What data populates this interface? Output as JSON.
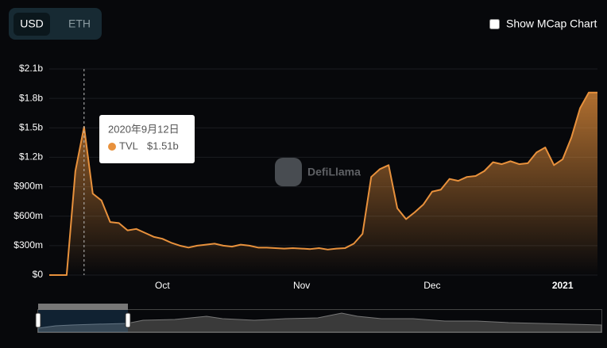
{
  "chart_data": {
    "type": "area",
    "currency_options": [
      "USD",
      "ETH"
    ],
    "selected_currency": "USD",
    "checkbox_label": "Show MCap Chart",
    "watermark": "DefiLlama",
    "categories": [
      null,
      null,
      null,
      null,
      null,
      null,
      null,
      null,
      null,
      null,
      null,
      null,
      null,
      "Oct",
      null,
      null,
      null,
      null,
      null,
      null,
      null,
      null,
      null,
      null,
      null,
      null,
      null,
      null,
      null,
      "Nov",
      null,
      null,
      null,
      null,
      null,
      null,
      null,
      null,
      null,
      null,
      null,
      null,
      null,
      null,
      "Dec",
      null,
      null,
      null,
      null,
      null,
      null,
      null,
      null,
      null,
      null,
      null,
      null,
      null,
      null,
      "2021",
      null,
      null,
      null,
      null
    ],
    "series": [
      {
        "name": "TVL",
        "color": "#e8913c",
        "values": [
          0,
          0,
          0,
          1060000000,
          1510000000,
          830000000,
          760000000,
          540000000,
          530000000,
          455000000,
          470000000,
          430000000,
          390000000,
          370000000,
          330000000,
          300000000,
          280000000,
          300000000,
          310000000,
          320000000,
          300000000,
          290000000,
          310000000,
          300000000,
          280000000,
          280000000,
          275000000,
          270000000,
          275000000,
          270000000,
          265000000,
          275000000,
          260000000,
          270000000,
          275000000,
          320000000,
          420000000,
          1000000000,
          1080000000,
          1120000000,
          680000000,
          570000000,
          640000000,
          720000000,
          850000000,
          870000000,
          980000000,
          960000000,
          1000000000,
          1010000000,
          1060000000,
          1150000000,
          1130000000,
          1160000000,
          1130000000,
          1140000000,
          1250000000,
          1300000000,
          1120000000,
          1180000000,
          1400000000,
          1700000000,
          1860000000,
          1860000000
        ]
      }
    ],
    "ylim": [
      0,
      2100000000
    ],
    "yticks": [
      {
        "value": 0,
        "label": "$0"
      },
      {
        "value": 300000000,
        "label": "$300m"
      },
      {
        "value": 600000000,
        "label": "$600m"
      },
      {
        "value": 900000000,
        "label": "$900m"
      },
      {
        "value": 1200000000,
        "label": "$1.2b"
      },
      {
        "value": 1500000000,
        "label": "$1.5b"
      },
      {
        "value": 1800000000,
        "label": "$1.8b"
      },
      {
        "value": 2100000000,
        "label": "$2.1b"
      }
    ],
    "grid": true,
    "tooltip": {
      "date": "2020年9月12日",
      "series": "TVL",
      "value": "$1.51b"
    }
  }
}
